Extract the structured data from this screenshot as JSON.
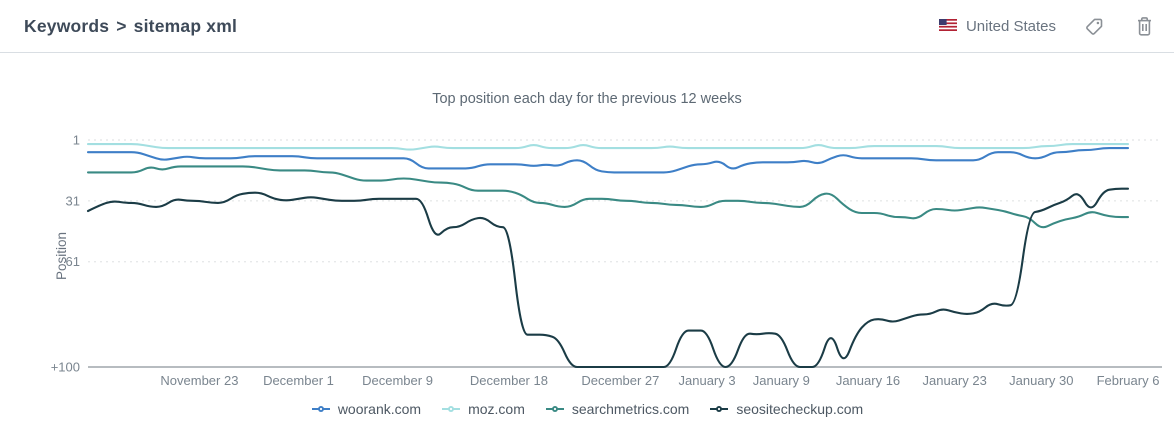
{
  "header": {
    "breadcrumb": {
      "parent": "Keywords",
      "separator": ">",
      "current": "sitemap xml"
    },
    "country": {
      "label": "United States",
      "flag_icon": "us-flag-icon"
    },
    "actions": {
      "tag_icon": "tag-icon",
      "trash_icon": "trash-icon"
    }
  },
  "colors": {
    "breadcrumb_text": "#3e4a59",
    "muted_text": "#69737f",
    "axis_text": "#7a858f",
    "gridline": "#e7e9ea",
    "axis_line": "#b7bcc0",
    "divider": "#d9dee3",
    "icon_gray": "#8b9096"
  },
  "chart_data": {
    "type": "line",
    "title": "Top position each day for the previous 12 weeks",
    "xlabel": "",
    "ylabel": "Position",
    "y_inverted": true,
    "grid": "dashed-horizontal",
    "legend_position": "bottom",
    "y_ticks": [
      {
        "label": "1",
        "value": 1
      },
      {
        "label": "31",
        "value": 31
      },
      {
        "label": "61",
        "value": 61
      },
      {
        "label": "+100",
        "value": 101
      }
    ],
    "not_ranked_value": 101,
    "x_ticks": [
      {
        "label": "November 23",
        "day": 9
      },
      {
        "label": "December 1",
        "day": 17
      },
      {
        "label": "December 9",
        "day": 25
      },
      {
        "label": "December 18",
        "day": 34
      },
      {
        "label": "December 27",
        "day": 43
      },
      {
        "label": "January 3",
        "day": 50
      },
      {
        "label": "January 9",
        "day": 56
      },
      {
        "label": "January 16",
        "day": 63
      },
      {
        "label": "January 23",
        "day": 70
      },
      {
        "label": "January 30",
        "day": 77
      },
      {
        "label": "February 6",
        "day": 84
      }
    ],
    "series": [
      {
        "name": "woorank.com",
        "color": "#3e7fc7",
        "values": [
          7,
          7,
          7,
          7,
          7,
          9,
          11,
          10,
          9,
          10,
          10,
          10,
          10,
          9,
          9,
          9,
          9,
          9,
          10,
          10,
          10,
          10,
          10,
          10,
          10,
          10,
          10,
          15,
          15,
          15,
          15,
          15,
          13,
          13,
          13,
          13,
          14,
          13,
          14,
          11,
          11,
          16,
          17,
          17,
          17,
          17,
          17,
          17,
          15,
          13,
          13,
          11,
          16,
          13,
          12,
          12,
          12,
          12,
          11,
          13,
          10,
          8,
          10,
          10,
          10,
          10,
          10,
          10,
          11,
          11,
          11,
          11,
          11,
          7,
          7,
          7,
          10,
          10,
          7,
          7,
          6,
          6,
          5,
          5,
          5
        ]
      },
      {
        "name": "moz.com",
        "color": "#a3dfe1",
        "values": [
          3,
          3,
          3,
          3,
          3,
          4,
          5,
          5,
          5,
          5,
          5,
          5,
          5,
          5,
          5,
          5,
          5,
          5,
          5,
          5,
          5,
          5,
          5,
          5,
          5,
          5,
          6,
          5,
          4,
          5,
          5,
          5,
          5,
          5,
          5,
          5,
          3,
          5,
          5,
          5,
          3,
          5,
          5,
          5,
          5,
          5,
          5,
          4,
          5,
          5,
          5,
          5,
          5,
          5,
          5,
          5,
          5,
          5,
          5,
          3,
          5,
          5,
          5,
          4,
          4,
          4,
          4,
          4,
          4,
          4,
          5,
          5,
          5,
          5,
          5,
          5,
          5,
          4,
          4,
          3,
          3,
          3,
          3,
          3,
          3
        ]
      },
      {
        "name": "searchmetrics.com",
        "color": "#3a8a84",
        "values": [
          17,
          17,
          17,
          17,
          17,
          14,
          16,
          14,
          14,
          14,
          14,
          14,
          14,
          14,
          15,
          16,
          16,
          16,
          16,
          17,
          17,
          19,
          21,
          21,
          21,
          20,
          20,
          21,
          22,
          22,
          23,
          26,
          26,
          26,
          26,
          28,
          32,
          32,
          34,
          34,
          30,
          30,
          30,
          31,
          31,
          32,
          32,
          33,
          33,
          34,
          34,
          31,
          31,
          31,
          32,
          32,
          33,
          34,
          34,
          28,
          27,
          33,
          37,
          37,
          37,
          39,
          39,
          40,
          35,
          35,
          36,
          35,
          34,
          35,
          36,
          38,
          39,
          45,
          42,
          40,
          39,
          36,
          38,
          39,
          39
        ]
      },
      {
        "name": "seositecheckup.com",
        "color": "#1b3c46",
        "values": [
          36,
          33,
          31,
          32,
          32,
          34,
          34,
          30,
          31,
          31,
          32,
          32,
          28,
          27,
          27,
          30,
          31,
          30,
          29,
          30,
          31,
          31,
          31,
          30,
          30,
          30,
          30,
          30,
          50,
          44,
          44,
          40,
          39,
          44,
          44,
          97,
          97,
          97,
          99,
          101,
          101,
          101,
          101,
          101,
          101,
          101,
          101,
          101,
          95,
          95,
          95,
          101,
          101,
          96,
          97,
          96,
          97,
          101,
          101,
          101,
          94,
          101,
          97,
          90,
          89,
          91,
          89,
          87,
          87,
          84,
          86,
          87,
          86,
          81,
          83,
          82,
          37,
          36,
          33,
          31,
          26,
          37,
          26,
          25,
          25
        ]
      }
    ]
  }
}
